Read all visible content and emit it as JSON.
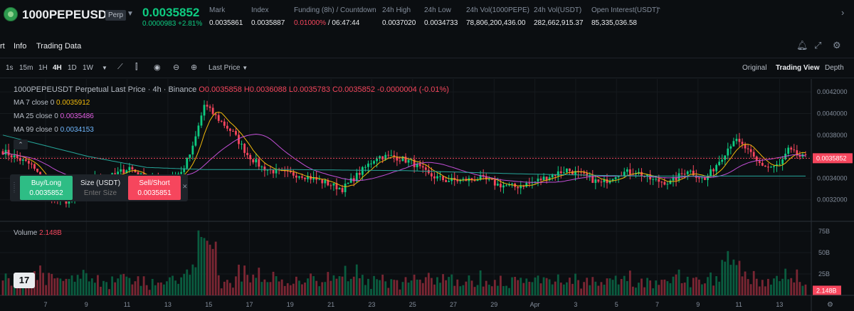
{
  "header": {
    "symbol": "1000PEPEUSDT",
    "badge": "Perp",
    "last_price": "0.0035852",
    "change": "0.0000983 +2.81%",
    "stats": [
      {
        "label": "Mark",
        "value": "0.0035861"
      },
      {
        "label": "Index",
        "value": "0.0035887"
      },
      {
        "label": "Funding (8h) / Countdown",
        "value_red": "0.01000%",
        "value": " / 06:47:44"
      },
      {
        "label": "24h High",
        "value": "0.0037020"
      },
      {
        "label": "24h Low",
        "value": "0.0034733"
      },
      {
        "label": "24h Vol(1000PEPE)",
        "value": "78,806,200,436.00"
      },
      {
        "label": "24h Vol(USDT)",
        "value": "282,662,915.37"
      },
      {
        "label": "Open Interest(USDT)",
        "value": "85,335,036.58"
      }
    ]
  },
  "tabs": [
    "rt",
    "Info",
    "Trading Data"
  ],
  "toolbar": {
    "timeframes": [
      "1s",
      "15m",
      "1H",
      "4H",
      "1D",
      "1W"
    ],
    "active_timeframe": "4H",
    "price_type": "Last Price",
    "views": [
      "Original",
      "Trading View",
      "Depth"
    ],
    "active_view": "Trading View"
  },
  "legend": {
    "title": "1000PEPEUSDT Perpetual Last Price · 4h · Binance",
    "ohlc": "O0.0035858 H0.0036088 L0.0035783 C0.0035852 -0.0000004 (-0.01%)",
    "ma7_label": "MA 7 close 0",
    "ma7_value": "0.0035912",
    "ma25_label": "MA 25 close 0",
    "ma25_value": "0.0035486",
    "ma99_label": "MA 99 close 0",
    "ma99_value": "0.0034153",
    "volume_label": "Volume",
    "volume_value": "2.148B"
  },
  "order_widget": {
    "buy_label": "Buy/Long",
    "buy_price": "0.0035852",
    "size_label": "Size (USDT)",
    "size_placeholder": "Enter Size",
    "sell_label": "Sell/Short",
    "sell_price": "0.0035851"
  },
  "chart_data": {
    "type": "candlestick",
    "price_axis": [
      "0.0042000",
      "0.0040000",
      "0.0038000",
      "0.0034000",
      "0.0032000"
    ],
    "price_range": [
      0.003,
      0.00432
    ],
    "current_price": "0.0035852",
    "current_price_value": 0.0035852,
    "volume_axis": [
      "75B",
      "50B",
      "25B"
    ],
    "volume_range": [
      0,
      80
    ],
    "current_volume": "2.148B",
    "date_labels": [
      "7",
      "9",
      "11",
      "13",
      "15",
      "17",
      "19",
      "21",
      "23",
      "25",
      "27",
      "29",
      "Apr",
      "3",
      "5",
      "7",
      "9",
      "11",
      "13"
    ],
    "anchors": [
      [
        0,
        0.00365
      ],
      [
        10,
        0.00352
      ],
      [
        18,
        0.0032
      ],
      [
        24,
        0.00318
      ],
      [
        30,
        0.00338
      ],
      [
        38,
        0.00342
      ],
      [
        44,
        0.0035
      ],
      [
        50,
        0.00338
      ],
      [
        56,
        0.00338
      ],
      [
        62,
        0.00345
      ],
      [
        66,
        0.00368
      ],
      [
        70,
        0.00408
      ],
      [
        76,
        0.00392
      ],
      [
        80,
        0.00382
      ],
      [
        85,
        0.00362
      ],
      [
        90,
        0.0035
      ],
      [
        96,
        0.00345
      ],
      [
        104,
        0.00343
      ],
      [
        112,
        0.00336
      ],
      [
        118,
        0.0033
      ],
      [
        124,
        0.00345
      ],
      [
        130,
        0.0036
      ],
      [
        136,
        0.0036
      ],
      [
        142,
        0.00355
      ],
      [
        148,
        0.00343
      ],
      [
        154,
        0.00338
      ],
      [
        160,
        0.00338
      ],
      [
        166,
        0.0034
      ],
      [
        172,
        0.00334
      ],
      [
        178,
        0.00332
      ],
      [
        184,
        0.00336
      ],
      [
        190,
        0.00342
      ],
      [
        196,
        0.00348
      ],
      [
        202,
        0.00342
      ],
      [
        208,
        0.00335
      ],
      [
        214,
        0.00345
      ],
      [
        220,
        0.00346
      ],
      [
        226,
        0.00338
      ],
      [
        232,
        0.00336
      ],
      [
        238,
        0.00348
      ],
      [
        244,
        0.00338
      ],
      [
        250,
        0.0036
      ],
      [
        254,
        0.00376
      ],
      [
        258,
        0.00368
      ],
      [
        262,
        0.00355
      ],
      [
        266,
        0.0035
      ],
      [
        270,
        0.00352
      ],
      [
        273,
        0.00366
      ],
      [
        277,
        0.0036
      ],
      [
        280,
        0.00358
      ]
    ],
    "ma99_anchors": [
      [
        0,
        0.0038
      ],
      [
        30,
        0.0036
      ],
      [
        50,
        0.0035
      ],
      [
        70,
        0.00348
      ],
      [
        100,
        0.00348
      ],
      [
        140,
        0.00347
      ],
      [
        180,
        0.00344
      ],
      [
        220,
        0.00342
      ],
      [
        250,
        0.00342
      ],
      [
        280,
        0.00342
      ]
    ]
  }
}
